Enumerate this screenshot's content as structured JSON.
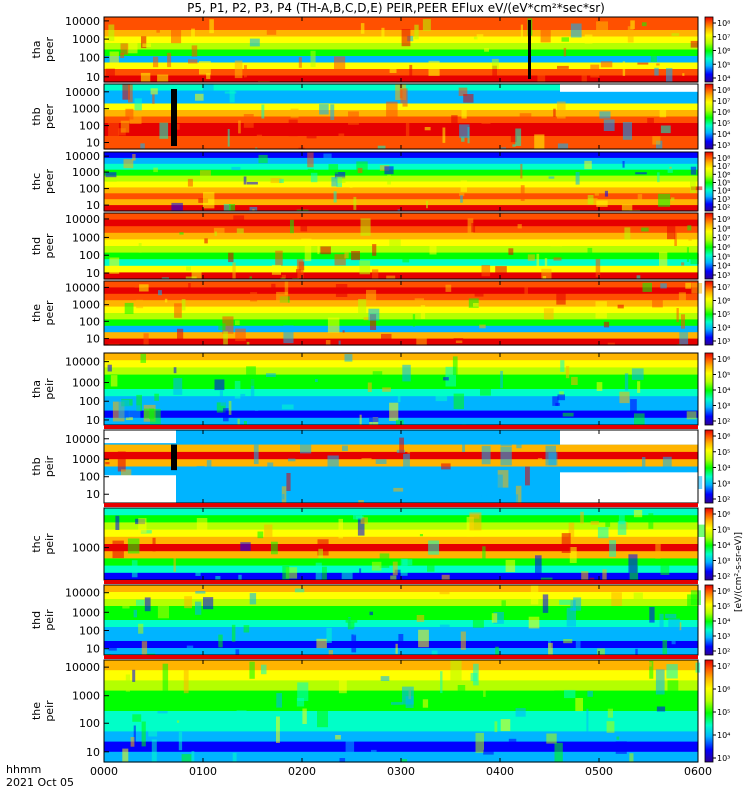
{
  "chart_data": {
    "type": "heatmap",
    "title": "P5, P1, P2, P3, P4 (TH-A,B,C,D,E) PEIR,PEER EFlux eV/(eV*cm²*sec*sr)",
    "x_label_left": "hhmm",
    "date_label": "2021 Oct 05",
    "x_ticks": [
      "0000",
      "0100",
      "0200",
      "0300",
      "0400",
      "0500",
      "0600"
    ],
    "x_range_hours": [
      0,
      6
    ],
    "colorbar_unit": "[eV/(cm²-s-sr-eV)]",
    "colorscale": [
      "#2d0096",
      "#0000ff",
      "#00b4ff",
      "#00ffc8",
      "#00ff00",
      "#b4ff00",
      "#ffff00",
      "#ffb400",
      "#ff5000",
      "#e60000"
    ],
    "panels": [
      {
        "label": [
          "tha",
          "peer"
        ],
        "y_ticks": [
          "10000",
          "1000",
          "100",
          "10"
        ],
        "cb_ticks": [
          "10⁸",
          "10⁷",
          "10⁶",
          "10⁵",
          "10⁴"
        ]
      },
      {
        "label": [
          "thb",
          "peer"
        ],
        "y_ticks": [
          "10000",
          "1000",
          "100",
          "10"
        ],
        "cb_ticks": [
          "10⁸",
          "10⁷",
          "10⁶",
          "10⁵",
          "10⁴",
          "10³"
        ]
      },
      {
        "label": [
          "thc",
          "peer"
        ],
        "y_ticks": [
          "10000",
          "1000",
          "100",
          "10"
        ],
        "cb_ticks": [
          "10⁸",
          "10⁷",
          "10⁶",
          "10⁵",
          "10⁴",
          "10³",
          "10²"
        ]
      },
      {
        "label": [
          "thd",
          "peer"
        ],
        "y_ticks": [
          "10000",
          "1000",
          "100",
          "10"
        ],
        "cb_ticks": [
          "10⁹",
          "10⁸",
          "10⁷",
          "10⁶",
          "10⁵",
          "10⁴",
          "10³"
        ]
      },
      {
        "label": [
          "the",
          "peer"
        ],
        "y_ticks": [
          "10000",
          "1000",
          "100",
          "10"
        ],
        "cb_ticks": [
          "10⁷",
          "10⁶",
          "10⁵",
          "10⁴",
          "10³"
        ]
      },
      {
        "label": [
          "tha",
          "peir"
        ],
        "y_ticks": [
          "10000",
          "1000",
          "100",
          "10"
        ],
        "cb_ticks": [
          "10⁶",
          "10⁵",
          "10⁴",
          "10³",
          "10²"
        ]
      },
      {
        "label": [
          "thb",
          "peir"
        ],
        "y_ticks": [
          "10000",
          "1000",
          "100",
          "10"
        ],
        "cb_ticks": [
          "10⁶",
          "10⁵",
          "10⁴",
          "10³",
          "10²"
        ]
      },
      {
        "label": [
          "thc",
          "peir"
        ],
        "y_ticks": [
          "1000"
        ],
        "cb_ticks": [
          "10⁶",
          "10⁵",
          "10⁴",
          "10³",
          "10²"
        ]
      },
      {
        "label": [
          "thd",
          "peir"
        ],
        "y_ticks": [
          "10000",
          "1000",
          "100",
          "10"
        ],
        "cb_ticks": [
          "10⁶",
          "10⁵",
          "10⁴",
          "10³",
          "10²"
        ]
      },
      {
        "label": [
          "the",
          "peir"
        ],
        "y_ticks": [
          "10000",
          "1000",
          "100",
          "10"
        ],
        "cb_ticks": [
          "10⁷",
          "10⁶",
          "10⁵",
          "10⁴",
          "10³"
        ]
      }
    ]
  }
}
